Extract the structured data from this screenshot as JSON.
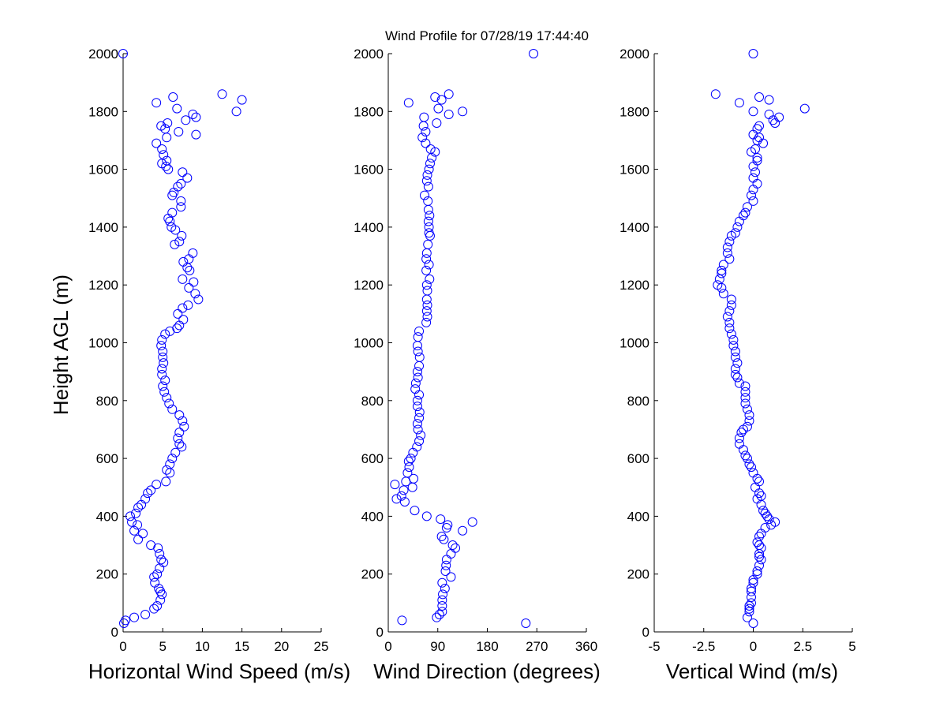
{
  "title": "Wind Profile for  07/28/19 17:44:40",
  "colors": {
    "marker": "#0000ff",
    "axis": "#000000",
    "background": "#ffffff"
  },
  "chart_data": [
    {
      "type": "scatter",
      "xlabel": "Horizontal Wind Speed (m/s)",
      "ylabel": "Height AGL (m)",
      "xlim": [
        0,
        25
      ],
      "ylim": [
        0,
        2000
      ],
      "xticks": [
        0,
        5,
        10,
        15,
        20,
        25
      ],
      "xtick_labels": [
        "0",
        "5",
        "10",
        "15",
        "20",
        "25"
      ],
      "yticks": [
        0,
        200,
        400,
        600,
        800,
        1000,
        1200,
        1400,
        1600,
        1800,
        2000
      ],
      "ytick_labels": [
        "0",
        "200",
        "400",
        "600",
        "800",
        "1000",
        "1200",
        "1400",
        "1600",
        "1800",
        "2000"
      ],
      "marker": "circle-open",
      "grid": false,
      "points": [
        [
          0,
          2000
        ],
        [
          12.5,
          1860
        ],
        [
          15,
          1840
        ],
        [
          6.3,
          1850
        ],
        [
          4.2,
          1830
        ],
        [
          6.8,
          1810
        ],
        [
          14.3,
          1800
        ],
        [
          8.8,
          1790
        ],
        [
          9.2,
          1780
        ],
        [
          7.9,
          1770
        ],
        [
          5.6,
          1760
        ],
        [
          5.3,
          1740
        ],
        [
          4.8,
          1750
        ],
        [
          7,
          1730
        ],
        [
          9.2,
          1720
        ],
        [
          5.5,
          1710
        ],
        [
          4.2,
          1690
        ],
        [
          4.9,
          1670
        ],
        [
          5.1,
          1650
        ],
        [
          5.5,
          1630
        ],
        [
          4.9,
          1620
        ],
        [
          5.4,
          1610
        ],
        [
          5.7,
          1600
        ],
        [
          7.5,
          1590
        ],
        [
          8.1,
          1570
        ],
        [
          7.3,
          1550
        ],
        [
          6.9,
          1540
        ],
        [
          6.4,
          1520
        ],
        [
          6.2,
          1510
        ],
        [
          7.3,
          1490
        ],
        [
          7.3,
          1470
        ],
        [
          6.2,
          1450
        ],
        [
          5.7,
          1430
        ],
        [
          5.9,
          1420
        ],
        [
          6.1,
          1400
        ],
        [
          6.6,
          1390
        ],
        [
          7.4,
          1370
        ],
        [
          7.1,
          1350
        ],
        [
          6.5,
          1340
        ],
        [
          8.8,
          1310
        ],
        [
          8.3,
          1290
        ],
        [
          7.6,
          1280
        ],
        [
          8.1,
          1260
        ],
        [
          8.4,
          1250
        ],
        [
          7.5,
          1220
        ],
        [
          8.9,
          1210
        ],
        [
          8.3,
          1190
        ],
        [
          9.1,
          1170
        ],
        [
          9.5,
          1150
        ],
        [
          8.2,
          1130
        ],
        [
          7.5,
          1120
        ],
        [
          6.9,
          1100
        ],
        [
          7.6,
          1080
        ],
        [
          7.1,
          1060
        ],
        [
          6.8,
          1050
        ],
        [
          5.9,
          1040
        ],
        [
          5.3,
          1030
        ],
        [
          4.9,
          1010
        ],
        [
          4.8,
          990
        ],
        [
          5,
          970
        ],
        [
          5,
          950
        ],
        [
          5.1,
          930
        ],
        [
          4.9,
          910
        ],
        [
          4.9,
          890
        ],
        [
          5.3,
          870
        ],
        [
          5,
          850
        ],
        [
          5.2,
          830
        ],
        [
          5.5,
          810
        ],
        [
          5.8,
          790
        ],
        [
          6.2,
          770
        ],
        [
          7.1,
          750
        ],
        [
          7.5,
          730
        ],
        [
          7.7,
          710
        ],
        [
          7.1,
          690
        ],
        [
          6.9,
          670
        ],
        [
          7.1,
          650
        ],
        [
          7.4,
          640
        ],
        [
          6.6,
          620
        ],
        [
          6.2,
          600
        ],
        [
          5.9,
          580
        ],
        [
          5.5,
          560
        ],
        [
          5.9,
          550
        ],
        [
          5.4,
          520
        ],
        [
          4.2,
          510
        ],
        [
          3.5,
          490
        ],
        [
          3.1,
          480
        ],
        [
          2.8,
          460
        ],
        [
          2.3,
          440
        ],
        [
          1.9,
          430
        ],
        [
          1.6,
          410
        ],
        [
          0.9,
          400
        ],
        [
          1.1,
          380
        ],
        [
          1.8,
          370
        ],
        [
          1.4,
          350
        ],
        [
          2.5,
          340
        ],
        [
          1.9,
          320
        ],
        [
          3.5,
          300
        ],
        [
          4.4,
          290
        ],
        [
          4.6,
          270
        ],
        [
          4.8,
          250
        ],
        [
          5.1,
          240
        ],
        [
          4.6,
          220
        ],
        [
          4.3,
          200
        ],
        [
          3.9,
          190
        ],
        [
          4,
          170
        ],
        [
          4.5,
          150
        ],
        [
          4.7,
          140
        ],
        [
          4.9,
          130
        ],
        [
          4.7,
          110
        ],
        [
          4.3,
          90
        ],
        [
          3.9,
          80
        ],
        [
          2.8,
          60
        ],
        [
          1.4,
          50
        ],
        [
          0.3,
          40
        ],
        [
          0.1,
          30
        ]
      ]
    },
    {
      "type": "scatter",
      "xlabel": "Wind Direction (degrees)",
      "xlim": [
        0,
        360
      ],
      "ylim": [
        0,
        2000
      ],
      "xticks": [
        0,
        90,
        180,
        270,
        360
      ],
      "xtick_labels": [
        "0",
        "90",
        "180",
        "270",
        "360"
      ],
      "yticks": [
        0,
        200,
        400,
        600,
        800,
        1000,
        1200,
        1400,
        1600,
        1800,
        2000
      ],
      "ytick_labels": [
        "0",
        "200",
        "400",
        "600",
        "800",
        "1000",
        "1200",
        "1400",
        "1600",
        "1800",
        "2000"
      ],
      "marker": "circle-open",
      "grid": false,
      "points": [
        [
          264,
          2000
        ],
        [
          110,
          1860
        ],
        [
          37,
          1830
        ],
        [
          85,
          1850
        ],
        [
          97,
          1840
        ],
        [
          91,
          1810
        ],
        [
          135,
          1800
        ],
        [
          110,
          1790
        ],
        [
          65,
          1780
        ],
        [
          88,
          1760
        ],
        [
          64,
          1750
        ],
        [
          68,
          1730
        ],
        [
          62,
          1710
        ],
        [
          68,
          1690
        ],
        [
          77,
          1670
        ],
        [
          85,
          1660
        ],
        [
          79,
          1640
        ],
        [
          76,
          1620
        ],
        [
          74,
          1600
        ],
        [
          71,
          1580
        ],
        [
          70,
          1560
        ],
        [
          73,
          1540
        ],
        [
          66,
          1510
        ],
        [
          72,
          1490
        ],
        [
          73,
          1460
        ],
        [
          75,
          1440
        ],
        [
          73,
          1420
        ],
        [
          74,
          1400
        ],
        [
          74,
          1380
        ],
        [
          76,
          1370
        ],
        [
          72,
          1340
        ],
        [
          70,
          1310
        ],
        [
          69,
          1290
        ],
        [
          74,
          1270
        ],
        [
          69,
          1250
        ],
        [
          75,
          1220
        ],
        [
          70,
          1200
        ],
        [
          71,
          1180
        ],
        [
          70,
          1150
        ],
        [
          71,
          1130
        ],
        [
          70,
          1110
        ],
        [
          71,
          1090
        ],
        [
          69,
          1070
        ],
        [
          56,
          1040
        ],
        [
          54,
          1020
        ],
        [
          53,
          990
        ],
        [
          54,
          970
        ],
        [
          57,
          950
        ],
        [
          56,
          920
        ],
        [
          53,
          900
        ],
        [
          54,
          880
        ],
        [
          50,
          860
        ],
        [
          49,
          840
        ],
        [
          56,
          820
        ],
        [
          53,
          800
        ],
        [
          53,
          780
        ],
        [
          57,
          760
        ],
        [
          56,
          740
        ],
        [
          53,
          720
        ],
        [
          54,
          700
        ],
        [
          59,
          680
        ],
        [
          56,
          660
        ],
        [
          52,
          640
        ],
        [
          45,
          620
        ],
        [
          41,
          600
        ],
        [
          37,
          590
        ],
        [
          38,
          570
        ],
        [
          35,
          550
        ],
        [
          46,
          530
        ],
        [
          32,
          520
        ],
        [
          12,
          510
        ],
        [
          44,
          500
        ],
        [
          28,
          490
        ],
        [
          24,
          470
        ],
        [
          15,
          460
        ],
        [
          30,
          450
        ],
        [
          48,
          420
        ],
        [
          70,
          400
        ],
        [
          95,
          390
        ],
        [
          108,
          370
        ],
        [
          106,
          360
        ],
        [
          153,
          380
        ],
        [
          135,
          350
        ],
        [
          97,
          330
        ],
        [
          101,
          320
        ],
        [
          117,
          300
        ],
        [
          122,
          290
        ],
        [
          114,
          270
        ],
        [
          106,
          250
        ],
        [
          105,
          230
        ],
        [
          104,
          210
        ],
        [
          114,
          190
        ],
        [
          98,
          170
        ],
        [
          103,
          150
        ],
        [
          99,
          130
        ],
        [
          98,
          110
        ],
        [
          98,
          90
        ],
        [
          98,
          70
        ],
        [
          93,
          60
        ],
        [
          88,
          50
        ],
        [
          25,
          40
        ],
        [
          250,
          30
        ]
      ]
    },
    {
      "type": "scatter",
      "xlabel": "Vertical Wind (m/s)",
      "xlim": [
        -5,
        5
      ],
      "ylim": [
        0,
        2000
      ],
      "xticks": [
        -5,
        -2.5,
        0,
        2.5,
        5
      ],
      "xtick_labels": [
        "-5",
        "-2.5",
        "0",
        "2.5",
        "5"
      ],
      "yticks": [
        0,
        200,
        400,
        600,
        800,
        1000,
        1200,
        1400,
        1600,
        1800,
        2000
      ],
      "ytick_labels": [
        "0",
        "200",
        "400",
        "600",
        "800",
        "1000",
        "1200",
        "1400",
        "1600",
        "1800",
        "2000"
      ],
      "marker": "circle-open",
      "grid": false,
      "points": [
        [
          0,
          2000
        ],
        [
          -1.9,
          1860
        ],
        [
          0.3,
          1850
        ],
        [
          -0.7,
          1830
        ],
        [
          0.8,
          1840
        ],
        [
          2.6,
          1810
        ],
        [
          0,
          1800
        ],
        [
          0.8,
          1790
        ],
        [
          1.3,
          1780
        ],
        [
          1,
          1770
        ],
        [
          1.1,
          1760
        ],
        [
          0.3,
          1750
        ],
        [
          0.2,
          1740
        ],
        [
          0,
          1720
        ],
        [
          0.3,
          1710
        ],
        [
          0.2,
          1700
        ],
        [
          0.5,
          1690
        ],
        [
          0.1,
          1670
        ],
        [
          -0.1,
          1660
        ],
        [
          0.2,
          1640
        ],
        [
          0.2,
          1630
        ],
        [
          0,
          1610
        ],
        [
          0.1,
          1590
        ],
        [
          0,
          1570
        ],
        [
          0.2,
          1550
        ],
        [
          0,
          1530
        ],
        [
          -0.1,
          1510
        ],
        [
          0,
          1490
        ],
        [
          -0.3,
          1470
        ],
        [
          -0.4,
          1450
        ],
        [
          -0.5,
          1440
        ],
        [
          -0.7,
          1420
        ],
        [
          -0.8,
          1400
        ],
        [
          -0.9,
          1380
        ],
        [
          -1.1,
          1370
        ],
        [
          -1.2,
          1350
        ],
        [
          -1.3,
          1330
        ],
        [
          -1.3,
          1310
        ],
        [
          -1.2,
          1290
        ],
        [
          -1.5,
          1270
        ],
        [
          -1.6,
          1250
        ],
        [
          -1.6,
          1240
        ],
        [
          -1.7,
          1220
        ],
        [
          -1.8,
          1200
        ],
        [
          -1.6,
          1190
        ],
        [
          -1.5,
          1170
        ],
        [
          -1.1,
          1150
        ],
        [
          -1.1,
          1130
        ],
        [
          -1.2,
          1110
        ],
        [
          -1.3,
          1090
        ],
        [
          -1.2,
          1070
        ],
        [
          -1.2,
          1050
        ],
        [
          -1.1,
          1030
        ],
        [
          -1,
          1010
        ],
        [
          -1,
          990
        ],
        [
          -0.9,
          970
        ],
        [
          -0.9,
          950
        ],
        [
          -0.8,
          930
        ],
        [
          -0.9,
          910
        ],
        [
          -0.9,
          890
        ],
        [
          -0.8,
          880
        ],
        [
          -0.7,
          860
        ],
        [
          -0.4,
          850
        ],
        [
          -0.4,
          830
        ],
        [
          -0.4,
          810
        ],
        [
          -0.4,
          790
        ],
        [
          -0.3,
          770
        ],
        [
          -0.2,
          750
        ],
        [
          -0.2,
          730
        ],
        [
          -0.3,
          710
        ],
        [
          -0.5,
          700
        ],
        [
          -0.6,
          690
        ],
        [
          -0.7,
          670
        ],
        [
          -0.7,
          650
        ],
        [
          -0.5,
          630
        ],
        [
          -0.4,
          610
        ],
        [
          -0.3,
          600
        ],
        [
          -0.2,
          580
        ],
        [
          -0.1,
          570
        ],
        [
          0,
          550
        ],
        [
          0.2,
          530
        ],
        [
          0.3,
          520
        ],
        [
          0.1,
          500
        ],
        [
          0.3,
          480
        ],
        [
          0.4,
          470
        ],
        [
          0.2,
          460
        ],
        [
          0.4,
          440
        ],
        [
          0.5,
          420
        ],
        [
          0.6,
          410
        ],
        [
          0.7,
          400
        ],
        [
          0.8,
          390
        ],
        [
          1.1,
          380
        ],
        [
          0.9,
          370
        ],
        [
          0.6,
          360
        ],
        [
          0.4,
          340
        ],
        [
          0.3,
          330
        ],
        [
          0.2,
          310
        ],
        [
          0.3,
          300
        ],
        [
          0.4,
          290
        ],
        [
          0.3,
          270
        ],
        [
          0.3,
          260
        ],
        [
          0.4,
          250
        ],
        [
          0.3,
          230
        ],
        [
          0.2,
          210
        ],
        [
          0.2,
          200
        ],
        [
          0,
          180
        ],
        [
          0,
          170
        ],
        [
          -0.1,
          150
        ],
        [
          -0.1,
          140
        ],
        [
          -0.1,
          120
        ],
        [
          -0.1,
          100
        ],
        [
          -0.2,
          90
        ],
        [
          -0.2,
          80
        ],
        [
          -0.2,
          70
        ],
        [
          -0.3,
          50
        ],
        [
          0,
          30
        ]
      ]
    }
  ]
}
